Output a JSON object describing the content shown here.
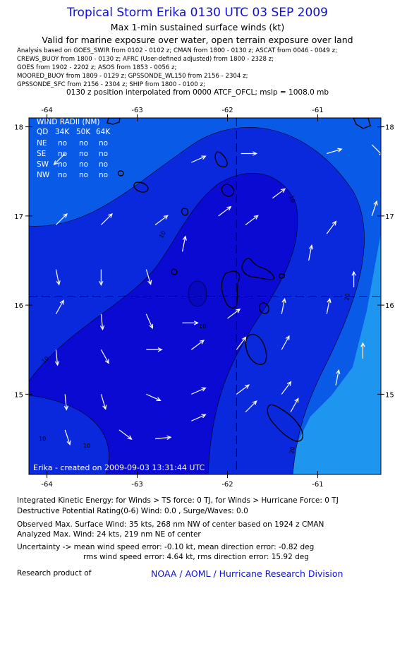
{
  "header": {
    "title": "Tropical Storm Erika 0130 UTC 03 SEP 2009",
    "subtitle": "Max 1-min sustained surface winds (kt)",
    "valid_line": "Valid for marine exposure over water, open terrain exposure over land",
    "analysis_lines": [
      "Analysis based on  GOES_SWIR from 0102 - 0102 z;  CMAN from 1800 - 0130 z;  ASCAT from 0046 - 0049 z;",
      "CREWS_BUOY from 1800 - 0130 z;  AFRC (User-defined adjusted) from 1800 - 2328 z;",
      "GOES from 1902 - 2202 z;  ASOS from 1853 - 0056 z;",
      "MOORED_BUOY from 1809 - 0129 z;  GPSSONDE_WL150 from 2156 - 2304 z;",
      "GPSSONDE_SFC from 2156 - 2304 z;  SHIP from 1800 - 0100 z;"
    ],
    "position_line": "0130 z position interpolated from 0000 ATCF_OFCL; mslp = 1008.0 mb"
  },
  "chart_data": {
    "type": "map-contour",
    "lon_range": [
      -64.2,
      -60.3
    ],
    "lat_range": [
      14.1,
      18.1
    ],
    "lon_ticks": [
      -64,
      -63,
      -62,
      -61
    ],
    "lon_tick_labels": [
      "-64",
      "-63",
      "-62",
      "-61"
    ],
    "lat_ticks": [
      15,
      16,
      17,
      18
    ],
    "lat_tick_labels": [
      "15",
      "16",
      "17",
      "18"
    ],
    "center": {
      "lon": -61.9,
      "lat": 16.1
    },
    "contour_levels_kt": [
      10,
      20
    ],
    "contour_labels": [
      "10",
      "10",
      "10",
      "10",
      "10",
      "10",
      "20",
      "20"
    ],
    "fill_colors": {
      "lt10": "#0a5ae8",
      "10to20": "#0a28dc",
      "ge20": "#0a0ad2",
      "outer_east": "#1e96f0"
    },
    "wind_radii_table": {
      "title": "WIND RADII (NM)",
      "columns": [
        "QD",
        "34K",
        "50K",
        "64K"
      ],
      "rows": [
        [
          "NE",
          "no",
          "no",
          "no"
        ],
        [
          "SE",
          "no",
          "no",
          "no"
        ],
        [
          "SW",
          "no",
          "no",
          "no"
        ],
        [
          "NW",
          "no",
          "no",
          "no"
        ]
      ]
    },
    "created_label": "Erika - created on 2009-09-03 13:31:44 UTC",
    "wind_vectors": [
      {
        "lon": -63.8,
        "lat": 17.7,
        "u": -0.7,
        "v": -0.7
      },
      {
        "lon": -63.9,
        "lat": 16.9,
        "u": 0.7,
        "v": 0.7
      },
      {
        "lon": -63.4,
        "lat": 16.9,
        "u": 0.7,
        "v": 0.7
      },
      {
        "lon": -62.8,
        "lat": 16.9,
        "u": 0.8,
        "v": 0.6
      },
      {
        "lon": -62.4,
        "lat": 17.6,
        "u": 0.9,
        "v": 0.4
      },
      {
        "lon": -61.85,
        "lat": 17.7,
        "u": 1.0,
        "v": 0.0
      },
      {
        "lon": -61.5,
        "lat": 17.2,
        "u": 0.8,
        "v": 0.6
      },
      {
        "lon": -60.9,
        "lat": 17.7,
        "u": 1.0,
        "v": 0.3
      },
      {
        "lon": -60.4,
        "lat": 17.8,
        "u": 0.7,
        "v": -0.7
      },
      {
        "lon": -60.9,
        "lat": 16.8,
        "u": 0.6,
        "v": 0.8
      },
      {
        "lon": -60.4,
        "lat": 17.0,
        "u": 0.3,
        "v": 0.9
      },
      {
        "lon": -61.1,
        "lat": 16.5,
        "u": 0.2,
        "v": 1.0
      },
      {
        "lon": -60.6,
        "lat": 16.2,
        "u": 0.0,
        "v": 1.0
      },
      {
        "lon": -61.8,
        "lat": 16.9,
        "u": 0.8,
        "v": 0.6
      },
      {
        "lon": -62.1,
        "lat": 17.0,
        "u": 0.8,
        "v": 0.6
      },
      {
        "lon": -62.5,
        "lat": 16.6,
        "u": 0.2,
        "v": 1.0
      },
      {
        "lon": -63.9,
        "lat": 16.4,
        "u": 0.2,
        "v": -1.0
      },
      {
        "lon": -63.4,
        "lat": 16.4,
        "u": 0.0,
        "v": -1.0
      },
      {
        "lon": -62.9,
        "lat": 16.4,
        "u": 0.3,
        "v": -1.0
      },
      {
        "lon": -63.9,
        "lat": 15.9,
        "u": 0.5,
        "v": 0.9
      },
      {
        "lon": -63.4,
        "lat": 15.9,
        "u": 0.1,
        "v": -1.0
      },
      {
        "lon": -62.9,
        "lat": 15.9,
        "u": 0.4,
        "v": -0.9
      },
      {
        "lon": -61.4,
        "lat": 15.9,
        "u": 0.2,
        "v": 1.0
      },
      {
        "lon": -60.9,
        "lat": 15.9,
        "u": 0.2,
        "v": 1.0
      },
      {
        "lon": -60.5,
        "lat": 15.4,
        "u": 0.0,
        "v": 1.0
      },
      {
        "lon": -63.9,
        "lat": 15.5,
        "u": 0.1,
        "v": -1.0
      },
      {
        "lon": -63.4,
        "lat": 15.5,
        "u": 0.5,
        "v": -0.9
      },
      {
        "lon": -62.9,
        "lat": 15.5,
        "u": 1.0,
        "v": 0.0
      },
      {
        "lon": -62.4,
        "lat": 15.5,
        "u": 0.8,
        "v": 0.6
      },
      {
        "lon": -61.9,
        "lat": 15.5,
        "u": 0.6,
        "v": 0.8
      },
      {
        "lon": -61.4,
        "lat": 15.5,
        "u": 0.5,
        "v": 0.9
      },
      {
        "lon": -60.8,
        "lat": 15.1,
        "u": 0.2,
        "v": 1.0
      },
      {
        "lon": -63.8,
        "lat": 15.0,
        "u": 0.1,
        "v": -1.0
      },
      {
        "lon": -63.4,
        "lat": 15.0,
        "u": 0.3,
        "v": -1.0
      },
      {
        "lon": -62.9,
        "lat": 15.0,
        "u": 0.9,
        "v": -0.4
      },
      {
        "lon": -62.4,
        "lat": 15.0,
        "u": 0.9,
        "v": 0.4
      },
      {
        "lon": -61.9,
        "lat": 15.0,
        "u": 0.8,
        "v": 0.6
      },
      {
        "lon": -61.4,
        "lat": 15.0,
        "u": 0.6,
        "v": 0.8
      },
      {
        "lon": -63.8,
        "lat": 14.6,
        "u": 0.3,
        "v": -0.9
      },
      {
        "lon": -63.2,
        "lat": 14.6,
        "u": 0.8,
        "v": -0.6
      },
      {
        "lon": -62.8,
        "lat": 14.5,
        "u": 1.0,
        "v": 0.1
      },
      {
        "lon": -62.4,
        "lat": 14.7,
        "u": 0.9,
        "v": 0.4
      },
      {
        "lon": -61.8,
        "lat": 14.8,
        "u": 0.7,
        "v": 0.7
      },
      {
        "lon": -61.3,
        "lat": 14.8,
        "u": 0.5,
        "v": 0.9
      },
      {
        "lon": -62.5,
        "lat": 15.8,
        "u": 1.0,
        "v": 0.0
      },
      {
        "lon": -62.0,
        "lat": 15.85,
        "u": 0.8,
        "v": 0.6
      }
    ]
  },
  "footer": {
    "ike": "Integrated Kinetic Energy:  for Winds > TS force: 0 TJ,  for Winds > Hurricane Force: 0 TJ",
    "dpr": "Destructive Potential Rating(0-6)   Wind: 0.0 , Surge/Waves: 0.0",
    "observed": "Observed Max. Surface Wind: 35 kts, 268 nm NW of center based on 1924 z CMAN",
    "analyzed": "Analyzed Max. Wind: 24 kts, 219 nm NE of center",
    "uncertainty1": "Uncertainty -> mean wind speed error:  -0.10 kt,   mean direction error:  -0.82 deg",
    "uncertainty2": "rms wind speed error: 4.64 kt,   rms direction error: 15.92 deg",
    "research": "Research product of",
    "credit": "NOAA / AOML / Hurricane Research Division"
  }
}
